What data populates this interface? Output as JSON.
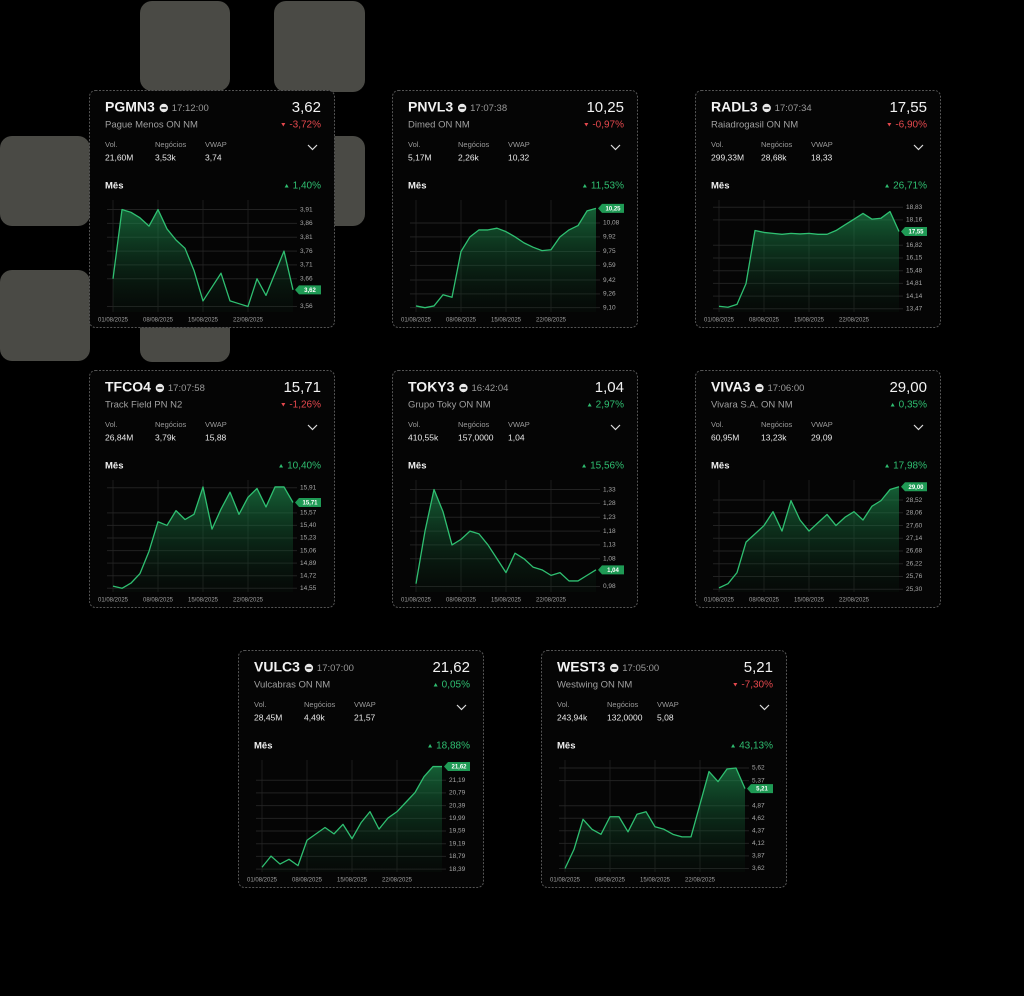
{
  "cards": [
    {
      "ticker": "PGMN3",
      "time": "17:12:00",
      "price": "3,62",
      "name": "Pague Menos ON NM",
      "change": "-3,72%",
      "change_trend": "down",
      "stats": [
        {
          "label": "Vol.",
          "value": "21,60M"
        },
        {
          "label": "Negócios",
          "value": "3,53k"
        },
        {
          "label": "VWAP",
          "value": "3,74"
        }
      ],
      "period": "Mês",
      "period_change": "1,40%",
      "period_trend": "up",
      "chart_data": {
        "type": "area",
        "color": "#2fbf71",
        "categories": [
          "01/08/2025",
          null,
          null,
          null,
          null,
          "08/08/2025",
          null,
          null,
          null,
          null,
          "15/08/2025",
          null,
          null,
          null,
          null,
          "22/08/2025",
          null,
          null,
          null,
          null,
          null
        ],
        "values": [
          3.66,
          3.91,
          3.9,
          3.88,
          3.85,
          3.91,
          3.84,
          3.8,
          3.77,
          3.69,
          3.58,
          3.63,
          3.68,
          3.58,
          3.57,
          3.56,
          3.66,
          3.6,
          3.68,
          3.76,
          3.62
        ],
        "value_labels": [
          null,
          null,
          null,
          null,
          null,
          null,
          null,
          null,
          null,
          null,
          null,
          null,
          null,
          null,
          null,
          null,
          null,
          null,
          null,
          null,
          "3,62"
        ],
        "ylim": [
          3.54,
          3.93
        ],
        "yticks": [
          {
            "value": 3.91,
            "label": "3,91"
          },
          {
            "value": 3.86,
            "label": "3,86"
          },
          {
            "value": 3.81,
            "label": "3,81"
          },
          {
            "value": 3.76,
            "label": "3,76"
          },
          {
            "value": 3.71,
            "label": "3,71"
          },
          {
            "value": 3.66,
            "label": "3,66"
          },
          {
            "value": 3.56,
            "label": "3,56"
          }
        ],
        "grid": true
      }
    },
    {
      "ticker": "PNVL3",
      "time": "17:07:38",
      "price": "10,25",
      "name": "Dimed ON NM",
      "change": "-0,97%",
      "change_trend": "down",
      "stats": [
        {
          "label": "Vol.",
          "value": "5,17M"
        },
        {
          "label": "Negócios",
          "value": "2,26k"
        },
        {
          "label": "VWAP",
          "value": "10,32"
        }
      ],
      "period": "Mês",
      "period_change": "11,53%",
      "period_trend": "up",
      "chart_data": {
        "type": "area",
        "color": "#2fbf71",
        "categories": [
          "01/08/2025",
          null,
          null,
          null,
          null,
          "08/08/2025",
          null,
          null,
          null,
          null,
          "15/08/2025",
          null,
          null,
          null,
          null,
          "22/08/2025",
          null,
          null,
          null,
          null,
          null
        ],
        "values": [
          9.12,
          9.1,
          9.12,
          9.25,
          9.22,
          9.75,
          9.92,
          10.0,
          10.0,
          10.02,
          9.98,
          9.92,
          9.85,
          9.8,
          9.76,
          9.77,
          9.92,
          10.0,
          10.05,
          10.22,
          10.25
        ],
        "value_labels": [
          null,
          null,
          null,
          null,
          null,
          null,
          null,
          null,
          null,
          null,
          null,
          null,
          null,
          null,
          null,
          null,
          null,
          null,
          null,
          null,
          "10,25"
        ],
        "ylim": [
          9.05,
          10.3
        ],
        "yticks": [
          {
            "value": 10.08,
            "label": "10,08"
          },
          {
            "value": 9.92,
            "label": "9,92"
          },
          {
            "value": 9.75,
            "label": "9,75"
          },
          {
            "value": 9.59,
            "label": "9,59"
          },
          {
            "value": 9.42,
            "label": "9,42"
          },
          {
            "value": 9.26,
            "label": "9,26"
          },
          {
            "value": 9.1,
            "label": "9,10"
          }
        ],
        "grid": true
      }
    },
    {
      "ticker": "RADL3",
      "time": "17:07:34",
      "price": "17,55",
      "name": "Raiadrogasil ON NM",
      "change": "-6,90%",
      "change_trend": "down",
      "stats": [
        {
          "label": "Vol.",
          "value": "299,33M"
        },
        {
          "label": "Negócios",
          "value": "28,68k"
        },
        {
          "label": "VWAP",
          "value": "18,33"
        }
      ],
      "period": "Mês",
      "period_change": "26,71%",
      "period_trend": "up",
      "chart_data": {
        "type": "area",
        "color": "#2fbf71",
        "categories": [
          "01/08/2025",
          null,
          null,
          null,
          null,
          "08/08/2025",
          null,
          null,
          null,
          null,
          "15/08/2025",
          null,
          null,
          null,
          null,
          "22/08/2025",
          null,
          null,
          null,
          null,
          null
        ],
        "values": [
          13.6,
          13.55,
          13.7,
          14.8,
          17.6,
          17.5,
          17.45,
          17.4,
          17.45,
          17.42,
          17.45,
          17.4,
          17.4,
          17.6,
          17.9,
          18.2,
          18.5,
          18.2,
          18.25,
          18.6,
          17.55
        ],
        "value_labels": [
          null,
          null,
          null,
          null,
          null,
          null,
          null,
          null,
          null,
          null,
          null,
          null,
          null,
          null,
          null,
          null,
          null,
          null,
          null,
          null,
          "17,55"
        ],
        "ylim": [
          13.3,
          19.0
        ],
        "yticks": [
          {
            "value": 18.83,
            "label": "18,83"
          },
          {
            "value": 18.16,
            "label": "18,16"
          },
          {
            "value": 16.82,
            "label": "16,82"
          },
          {
            "value": 16.15,
            "label": "16,15"
          },
          {
            "value": 15.48,
            "label": "15,48"
          },
          {
            "value": 14.81,
            "label": "14,81"
          },
          {
            "value": 14.14,
            "label": "14,14"
          },
          {
            "value": 13.47,
            "label": "13,47"
          }
        ],
        "grid": true
      }
    },
    {
      "ticker": "TFCO4",
      "time": "17:07:58",
      "price": "15,71",
      "name": "Track Field PN N2",
      "change": "-1,26%",
      "change_trend": "down",
      "stats": [
        {
          "label": "Vol.",
          "value": "26,84M"
        },
        {
          "label": "Negócios",
          "value": "3,79k"
        },
        {
          "label": "VWAP",
          "value": "15,88"
        }
      ],
      "period": "Mês",
      "period_change": "10,40%",
      "period_trend": "up",
      "chart_data": {
        "type": "area",
        "color": "#2fbf71",
        "categories": [
          "01/08/2025",
          null,
          null,
          null,
          null,
          "08/08/2025",
          null,
          null,
          null,
          null,
          "15/08/2025",
          null,
          null,
          null,
          null,
          "22/08/2025",
          null,
          null,
          null,
          null,
          null
        ],
        "values": [
          14.58,
          14.55,
          14.62,
          14.75,
          15.05,
          15.45,
          15.4,
          15.6,
          15.48,
          15.55,
          15.92,
          15.35,
          15.62,
          15.85,
          15.55,
          15.78,
          15.9,
          15.65,
          15.92,
          15.92,
          15.71
        ],
        "value_labels": [
          null,
          null,
          null,
          null,
          null,
          null,
          null,
          null,
          null,
          null,
          null,
          null,
          null,
          null,
          null,
          null,
          null,
          null,
          null,
          null,
          "15,71"
        ],
        "ylim": [
          14.5,
          15.96
        ],
        "yticks": [
          {
            "value": 15.91,
            "label": "15,91"
          },
          {
            "value": 15.57,
            "label": "15,57"
          },
          {
            "value": 15.4,
            "label": "15,40"
          },
          {
            "value": 15.23,
            "label": "15,23"
          },
          {
            "value": 15.06,
            "label": "15,06"
          },
          {
            "value": 14.89,
            "label": "14,89"
          },
          {
            "value": 14.72,
            "label": "14,72"
          },
          {
            "value": 14.55,
            "label": "14,55"
          }
        ],
        "grid": true
      }
    },
    {
      "ticker": "TOKY3",
      "time": "16:42:04",
      "price": "1,04",
      "name": "Grupo Toky ON NM",
      "change": "2,97%",
      "change_trend": "up",
      "stats": [
        {
          "label": "Vol.",
          "value": "410,55k"
        },
        {
          "label": "Negócios",
          "value": "157,0000"
        },
        {
          "label": "VWAP",
          "value": "1,04"
        }
      ],
      "period": "Mês",
      "period_change": "15,56%",
      "period_trend": "up",
      "chart_data": {
        "type": "area",
        "color": "#2fbf71",
        "categories": [
          "01/08/2025",
          null,
          null,
          null,
          null,
          "08/08/2025",
          null,
          null,
          null,
          null,
          "15/08/2025",
          null,
          null,
          null,
          null,
          "22/08/2025",
          null,
          null,
          null,
          null,
          null
        ],
        "values": [
          0.99,
          1.18,
          1.33,
          1.25,
          1.13,
          1.15,
          1.18,
          1.17,
          1.13,
          1.08,
          1.03,
          1.1,
          1.08,
          1.05,
          1.04,
          1.02,
          1.03,
          1.0,
          1.0,
          1.02,
          1.04
        ],
        "value_labels": [
          null,
          null,
          null,
          null,
          null,
          null,
          null,
          null,
          null,
          null,
          null,
          null,
          null,
          null,
          null,
          null,
          null,
          null,
          null,
          null,
          "1,04"
        ],
        "ylim": [
          0.96,
          1.35
        ],
        "yticks": [
          {
            "value": 1.33,
            "label": "1,33"
          },
          {
            "value": 1.28,
            "label": "1,28"
          },
          {
            "value": 1.23,
            "label": "1,23"
          },
          {
            "value": 1.18,
            "label": "1,18"
          },
          {
            "value": 1.13,
            "label": "1,13"
          },
          {
            "value": 1.08,
            "label": "1,08"
          },
          {
            "value": 0.98,
            "label": "0,98"
          }
        ],
        "grid": true
      }
    },
    {
      "ticker": "VIVA3",
      "time": "17:06:00",
      "price": "29,00",
      "name": "Vivara S.A. ON NM",
      "change": "0,35%",
      "change_trend": "up",
      "stats": [
        {
          "label": "Vol.",
          "value": "60,95M"
        },
        {
          "label": "Negócios",
          "value": "13,23k"
        },
        {
          "label": "VWAP",
          "value": "29,09"
        }
      ],
      "period": "Mês",
      "period_change": "17,98%",
      "period_trend": "up",
      "chart_data": {
        "type": "area",
        "color": "#2fbf71",
        "categories": [
          "01/08/2025",
          null,
          null,
          null,
          null,
          "08/08/2025",
          null,
          null,
          null,
          null,
          "15/08/2025",
          null,
          null,
          null,
          null,
          "22/08/2025",
          null,
          null,
          null,
          null,
          null
        ],
        "values": [
          25.35,
          25.5,
          25.9,
          27.0,
          27.3,
          27.6,
          28.1,
          27.4,
          28.5,
          27.8,
          27.4,
          27.7,
          28.0,
          27.6,
          27.9,
          28.1,
          27.8,
          28.3,
          28.5,
          28.9,
          29.0
        ],
        "value_labels": [
          null,
          null,
          null,
          null,
          null,
          null,
          null,
          null,
          null,
          null,
          null,
          null,
          null,
          null,
          null,
          null,
          null,
          null,
          null,
          null,
          "29,00"
        ],
        "ylim": [
          25.2,
          29.1
        ],
        "yticks": [
          {
            "value": 28.52,
            "label": "28,52"
          },
          {
            "value": 28.06,
            "label": "28,06"
          },
          {
            "value": 27.6,
            "label": "27,60"
          },
          {
            "value": 27.14,
            "label": "27,14"
          },
          {
            "value": 26.68,
            "label": "26,68"
          },
          {
            "value": 26.22,
            "label": "26,22"
          },
          {
            "value": 25.76,
            "label": "25,76"
          },
          {
            "value": 25.3,
            "label": "25,30"
          }
        ],
        "grid": true
      }
    },
    {
      "ticker": "VULC3",
      "time": "17:07:00",
      "price": "21,62",
      "name": "Vulcabras ON NM",
      "change": "0,05%",
      "change_trend": "up",
      "stats": [
        {
          "label": "Vol.",
          "value": "28,45M"
        },
        {
          "label": "Negócios",
          "value": "4,49k"
        },
        {
          "label": "VWAP",
          "value": "21,57"
        }
      ],
      "period": "Mês",
      "period_change": "18,88%",
      "period_trend": "up",
      "chart_data": {
        "type": "area",
        "color": "#2fbf71",
        "categories": [
          "01/08/2025",
          null,
          null,
          null,
          null,
          "08/08/2025",
          null,
          null,
          null,
          null,
          "15/08/2025",
          null,
          null,
          null,
          null,
          "22/08/2025",
          null,
          null,
          null,
          null,
          null
        ],
        "values": [
          18.45,
          18.8,
          18.55,
          18.7,
          18.5,
          19.3,
          19.5,
          19.7,
          19.5,
          19.8,
          19.35,
          19.85,
          20.2,
          19.65,
          20.0,
          20.2,
          20.5,
          20.8,
          21.3,
          21.62,
          21.62
        ],
        "value_labels": [
          null,
          null,
          null,
          null,
          null,
          null,
          null,
          null,
          null,
          null,
          null,
          null,
          null,
          null,
          null,
          null,
          null,
          null,
          null,
          null,
          "21,62"
        ],
        "ylim": [
          18.3,
          21.7
        ],
        "yticks": [
          {
            "value": 21.19,
            "label": "21,19"
          },
          {
            "value": 20.79,
            "label": "20,79"
          },
          {
            "value": 20.39,
            "label": "20,39"
          },
          {
            "value": 19.99,
            "label": "19,99"
          },
          {
            "value": 19.59,
            "label": "19,59"
          },
          {
            "value": 19.19,
            "label": "19,19"
          },
          {
            "value": 18.79,
            "label": "18,79"
          },
          {
            "value": 18.39,
            "label": "18,39"
          }
        ],
        "grid": true
      }
    },
    {
      "ticker": "WEST3",
      "time": "17:05:00",
      "price": "5,21",
      "name": "Westwing ON NM",
      "change": "-7,30%",
      "change_trend": "down",
      "stats": [
        {
          "label": "Vol.",
          "value": "243,94k"
        },
        {
          "label": "Negócios",
          "value": "132,0000"
        },
        {
          "label": "VWAP",
          "value": "5,08"
        }
      ],
      "period": "Mês",
      "period_change": "43,13%",
      "period_trend": "up",
      "chart_data": {
        "type": "area",
        "color": "#2fbf71",
        "categories": [
          "01/08/2025",
          null,
          null,
          null,
          null,
          "08/08/2025",
          null,
          null,
          null,
          null,
          "15/08/2025",
          null,
          null,
          null,
          null,
          "22/08/2025",
          null,
          null,
          null,
          null,
          null
        ],
        "values": [
          3.62,
          4.0,
          4.6,
          4.4,
          4.3,
          4.65,
          4.65,
          4.35,
          4.7,
          4.75,
          4.45,
          4.4,
          4.3,
          4.25,
          4.25,
          4.9,
          5.55,
          5.35,
          5.6,
          5.62,
          5.21
        ],
        "value_labels": [
          null,
          null,
          null,
          null,
          null,
          null,
          null,
          null,
          null,
          null,
          null,
          null,
          null,
          null,
          null,
          null,
          null,
          null,
          null,
          null,
          "5,21"
        ],
        "ylim": [
          3.55,
          5.7
        ],
        "yticks": [
          {
            "value": 5.62,
            "label": "5,62"
          },
          {
            "value": 5.37,
            "label": "5,37"
          },
          {
            "value": 4.87,
            "label": "4,87"
          },
          {
            "value": 4.62,
            "label": "4,62"
          },
          {
            "value": 4.37,
            "label": "4,37"
          },
          {
            "value": 4.12,
            "label": "4,12"
          },
          {
            "value": 3.87,
            "label": "3,87"
          },
          {
            "value": 3.62,
            "label": "3,62"
          }
        ],
        "grid": true
      }
    }
  ]
}
